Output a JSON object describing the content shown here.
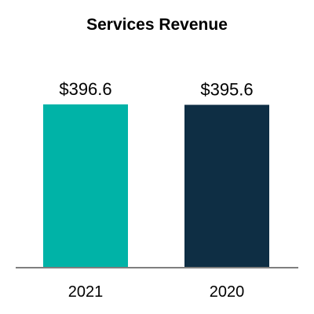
{
  "chart_data": {
    "type": "bar",
    "title": "Services Revenue",
    "categories": [
      "2021",
      "2020"
    ],
    "values": [
      396.6,
      395.6
    ],
    "data_labels": [
      "$396.6",
      "$395.6"
    ],
    "colors": [
      "#00b3a7",
      "#0e2e44"
    ],
    "axis_color": "#7f7f7f",
    "xlabel": "",
    "ylabel": "",
    "grid": false,
    "legend": "none"
  }
}
